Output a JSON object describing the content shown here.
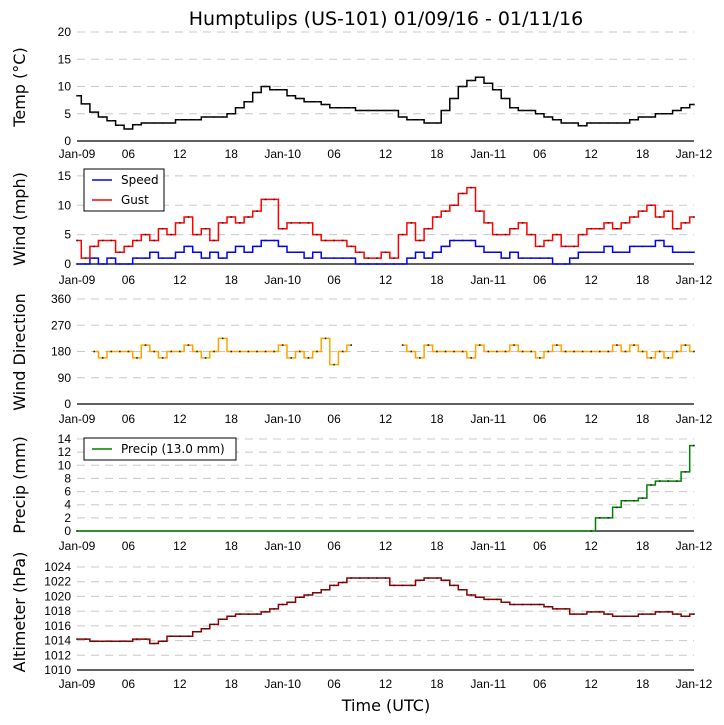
{
  "title": "Humptulips (US-101) 01/09/16 - 01/11/16",
  "xlabel": "Time (UTC)",
  "chart_data": [
    {
      "type": "line",
      "id": "temp",
      "ylabel": "Temp (°C)",
      "ylim": [
        0,
        20
      ],
      "yticks": [
        0,
        5,
        10,
        15,
        20
      ],
      "xlim_hours": [
        0,
        72
      ],
      "xticks": [
        "Jan-09",
        "06",
        "12",
        "18",
        "Jan-10",
        "06",
        "12",
        "18",
        "Jan-11",
        "06",
        "12",
        "18",
        "Jan-12"
      ],
      "grid": true,
      "legend": null,
      "series": [
        {
          "name": "Temp",
          "color": "#000000",
          "x_hours": [
            0,
            1,
            2,
            3,
            4,
            5,
            6,
            7,
            8,
            9,
            10,
            11,
            12,
            13,
            14,
            15,
            16,
            17,
            18,
            19,
            20,
            21,
            22,
            23,
            24,
            25,
            26,
            27,
            28,
            29,
            30,
            31,
            32,
            33,
            34,
            35,
            36,
            37,
            38,
            39,
            40,
            41,
            42,
            43,
            44,
            45,
            46,
            47,
            48,
            49,
            50,
            51,
            52,
            53,
            54,
            55,
            56,
            57,
            58,
            59,
            60,
            61,
            62,
            63,
            64,
            65,
            66,
            67,
            68,
            69,
            70,
            71,
            72
          ],
          "values": [
            8.3,
            6.8,
            5.3,
            4.4,
            3.7,
            2.9,
            2.2,
            3.0,
            3.3,
            3.3,
            3.3,
            3.3,
            3.9,
            3.9,
            3.9,
            4.4,
            4.4,
            4.4,
            5.0,
            6.1,
            7.2,
            8.9,
            10.0,
            9.4,
            9.4,
            8.3,
            7.8,
            7.2,
            7.2,
            6.7,
            6.1,
            6.1,
            6.1,
            5.6,
            5.6,
            5.6,
            5.6,
            5.6,
            4.4,
            3.9,
            3.9,
            3.3,
            3.3,
            5.6,
            7.8,
            10.0,
            11.1,
            11.7,
            10.6,
            9.4,
            7.8,
            6.1,
            5.6,
            5.6,
            5.0,
            4.4,
            3.9,
            3.3,
            3.3,
            2.8,
            3.3,
            3.3,
            3.3,
            3.3,
            3.3,
            3.9,
            4.4,
            4.4,
            5.0,
            5.0,
            5.6,
            6.1,
            6.7,
            6.7,
            6.7
          ]
        }
      ]
    },
    {
      "type": "line",
      "id": "wind",
      "ylabel": "Wind (mph)",
      "ylim": [
        0,
        16
      ],
      "yticks": [
        0,
        5,
        10,
        15
      ],
      "xlim_hours": [
        0,
        72
      ],
      "xticks": [
        "Jan-09",
        "06",
        "12",
        "18",
        "Jan-10",
        "06",
        "12",
        "18",
        "Jan-11",
        "06",
        "12",
        "18",
        "Jan-12"
      ],
      "grid": true,
      "legend": "top-left",
      "series": [
        {
          "name": "Speed",
          "color": "#0000ff",
          "x_hours": [
            0,
            1,
            2,
            3,
            4,
            5,
            6,
            7,
            8,
            9,
            10,
            11,
            12,
            13,
            14,
            15,
            16,
            17,
            18,
            19,
            20,
            21,
            22,
            23,
            24,
            25,
            26,
            27,
            28,
            29,
            30,
            31,
            32,
            33,
            34,
            35,
            36,
            37,
            38,
            39,
            40,
            41,
            42,
            43,
            44,
            45,
            46,
            47,
            48,
            49,
            50,
            51,
            52,
            53,
            54,
            55,
            56,
            57,
            58,
            59,
            60,
            61,
            62,
            63,
            64,
            65,
            66,
            67,
            68,
            69,
            70,
            71,
            72
          ],
          "values": [
            0,
            0,
            1,
            0,
            1,
            0,
            0,
            1,
            1,
            2,
            1,
            1,
            2,
            3,
            2,
            1,
            2,
            1,
            2,
            3,
            2,
            3,
            4,
            4,
            3,
            2,
            2,
            1,
            2,
            1,
            1,
            1,
            1,
            0,
            0,
            0,
            0,
            0,
            0,
            1,
            2,
            1,
            2,
            3,
            4,
            4,
            4,
            3,
            2,
            2,
            1,
            2,
            1,
            1,
            1,
            1,
            0,
            0,
            1,
            2,
            2,
            2,
            3,
            2,
            2,
            3,
            3,
            3,
            4,
            3,
            2,
            2,
            2
          ]
        },
        {
          "name": "Gust",
          "color": "#ff0000",
          "x_hours": [
            0,
            1,
            2,
            3,
            4,
            5,
            6,
            7,
            8,
            9,
            10,
            11,
            12,
            13,
            14,
            15,
            16,
            17,
            18,
            19,
            20,
            21,
            22,
            23,
            24,
            25,
            26,
            27,
            28,
            29,
            30,
            31,
            32,
            33,
            34,
            35,
            36,
            37,
            38,
            39,
            40,
            41,
            42,
            43,
            44,
            45,
            46,
            47,
            48,
            49,
            50,
            51,
            52,
            53,
            54,
            55,
            56,
            57,
            58,
            59,
            60,
            61,
            62,
            63,
            64,
            65,
            66,
            67,
            68,
            69,
            70,
            71,
            72
          ],
          "values": [
            4,
            1,
            3,
            4,
            4,
            2,
            3,
            4,
            5,
            4,
            6,
            5,
            7,
            8,
            5,
            6,
            4,
            7,
            8,
            7,
            8,
            9,
            11,
            11,
            6,
            7,
            7,
            7,
            5,
            4,
            4,
            4,
            3,
            2,
            1,
            1,
            2,
            1,
            5,
            7,
            4,
            6,
            8,
            9,
            10,
            12,
            13,
            9,
            7,
            5,
            5,
            6,
            7,
            5,
            3,
            4,
            5,
            3,
            3,
            5,
            6,
            6,
            7,
            6,
            7,
            8,
            9,
            10,
            8,
            9,
            6,
            7,
            8
          ]
        }
      ]
    },
    {
      "type": "line",
      "id": "wind-direction",
      "ylabel": "Wind Direction",
      "ylim": [
        0,
        360
      ],
      "yticks": [
        0,
        90,
        180,
        270,
        360
      ],
      "xlim_hours": [
        0,
        72
      ],
      "xticks": [
        "Jan-09",
        "06",
        "12",
        "18",
        "Jan-10",
        "06",
        "12",
        "18",
        "Jan-11",
        "06",
        "12",
        "18",
        "Jan-12"
      ],
      "grid": true,
      "legend": null,
      "series": [
        {
          "name": "Direction",
          "color": "#ffa500",
          "x_hours": [
            2,
            3,
            4,
            5,
            6,
            7,
            8,
            9,
            10,
            11,
            12,
            13,
            14,
            15,
            16,
            17,
            18,
            19,
            20,
            21,
            22,
            23,
            24,
            25,
            26,
            27,
            28,
            29,
            30,
            31,
            32,
            null,
            38,
            39,
            40,
            41,
            42,
            43,
            44,
            45,
            46,
            47,
            48,
            49,
            50,
            51,
            52,
            53,
            54,
            55,
            56,
            57,
            58,
            59,
            60,
            61,
            62,
            63,
            64,
            65,
            66,
            67,
            68,
            69,
            70,
            71,
            72
          ],
          "values": [
            180,
            158,
            180,
            180,
            180,
            158,
            202,
            180,
            158,
            180,
            180,
            202,
            180,
            158,
            180,
            225,
            180,
            180,
            180,
            180,
            180,
            180,
            202,
            158,
            180,
            158,
            180,
            225,
            135,
            180,
            202,
            null,
            202,
            180,
            158,
            202,
            180,
            180,
            180,
            180,
            158,
            202,
            180,
            180,
            180,
            202,
            180,
            180,
            158,
            180,
            202,
            180,
            180,
            180,
            180,
            180,
            180,
            202,
            180,
            202,
            180,
            158,
            180,
            158,
            180,
            202,
            180
          ]
        }
      ]
    },
    {
      "type": "line",
      "id": "precip",
      "ylabel": "Precip (mm)",
      "ylim": [
        0,
        14
      ],
      "yticks": [
        0,
        2,
        4,
        6,
        8,
        10,
        12,
        14
      ],
      "xlim_hours": [
        0,
        72
      ],
      "xticks": [
        "Jan-09",
        "06",
        "12",
        "18",
        "Jan-10",
        "06",
        "12",
        "18",
        "Jan-11",
        "06",
        "12",
        "18",
        "Jan-12"
      ],
      "grid": true,
      "legend": "top-left",
      "series": [
        {
          "name": "Precip (13.0 mm)",
          "color": "#008000",
          "x_hours": [
            0,
            60,
            61,
            62,
            63,
            64,
            65,
            66,
            67,
            68,
            69,
            70,
            71,
            72
          ],
          "values": [
            0,
            0,
            2,
            2,
            3.6,
            4.6,
            4.6,
            5,
            7,
            7.6,
            7.6,
            7.6,
            9,
            13
          ]
        }
      ]
    },
    {
      "type": "line",
      "id": "altimeter",
      "ylabel": "Altimeter (hPa)",
      "ylim": [
        1010,
        1024
      ],
      "yticks": [
        1010,
        1012,
        1014,
        1016,
        1018,
        1020,
        1022,
        1024
      ],
      "xlim_hours": [
        0,
        72
      ],
      "xticks": [
        "Jan-09",
        "06",
        "12",
        "18",
        "Jan-10",
        "06",
        "12",
        "18",
        "Jan-11",
        "06",
        "12",
        "18",
        "Jan-12"
      ],
      "grid": true,
      "legend": null,
      "series": [
        {
          "name": "Altimeter",
          "color": "#8b0000",
          "x_hours": [
            0,
            1,
            2,
            3,
            4,
            5,
            6,
            7,
            8,
            9,
            10,
            11,
            12,
            13,
            14,
            15,
            16,
            17,
            18,
            19,
            20,
            21,
            22,
            23,
            24,
            25,
            26,
            27,
            28,
            29,
            30,
            31,
            32,
            33,
            34,
            35,
            36,
            37,
            38,
            39,
            40,
            41,
            42,
            43,
            44,
            45,
            46,
            47,
            48,
            49,
            50,
            51,
            52,
            53,
            54,
            55,
            56,
            57,
            58,
            59,
            60,
            61,
            62,
            63,
            64,
            65,
            66,
            67,
            68,
            69,
            70,
            71,
            72
          ],
          "values": [
            1014.2,
            1014.2,
            1013.9,
            1013.9,
            1013.9,
            1013.9,
            1013.9,
            1014.2,
            1014.2,
            1013.6,
            1013.9,
            1014.6,
            1014.6,
            1014.6,
            1015.2,
            1015.6,
            1016.2,
            1016.9,
            1017.3,
            1017.6,
            1017.6,
            1017.6,
            1017.9,
            1018.3,
            1018.9,
            1019.2,
            1019.9,
            1020.2,
            1020.5,
            1020.9,
            1021.5,
            1021.9,
            1022.5,
            1022.5,
            1022.5,
            1022.5,
            1022.5,
            1021.5,
            1021.5,
            1021.5,
            1022.2,
            1022.5,
            1022.5,
            1022.2,
            1021.5,
            1020.9,
            1020.2,
            1019.9,
            1019.6,
            1019.6,
            1019.2,
            1018.9,
            1018.9,
            1018.9,
            1018.9,
            1018.6,
            1018.3,
            1018.3,
            1017.6,
            1017.6,
            1017.9,
            1017.9,
            1017.6,
            1017.3,
            1017.3,
            1017.3,
            1017.6,
            1017.6,
            1017.9,
            1017.9,
            1017.6,
            1017.3,
            1017.6
          ]
        }
      ]
    }
  ]
}
